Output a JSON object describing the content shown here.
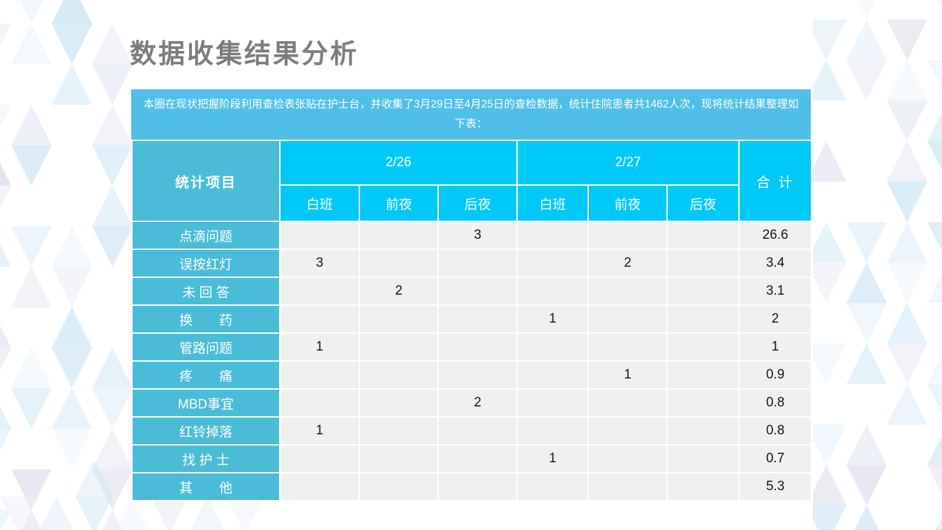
{
  "page_title": "数据收集结果分析",
  "banner": {
    "text": "本圈在现状把握阶段利用查检表张贴在护士台，并收集了3月29日至4月25日的查检数据，统计住院患者共1462人次，现将统计结果整理如下表："
  },
  "colors": {
    "banner_bg": "#50bfe8",
    "header_bg": "#00c9f7",
    "label_bg": "#4abcd8",
    "data_cell_bg": "#f0f0f0",
    "title_color": "#7c7c7c"
  },
  "table": {
    "project_col_label": "统计项目",
    "total_col_label": "合 计",
    "date_groups": [
      {
        "label": "2/26",
        "shifts": [
          "白班",
          "前夜",
          "后夜"
        ]
      },
      {
        "label": "2/27",
        "shifts": [
          "白班",
          "前夜",
          "后夜"
        ]
      }
    ],
    "rows": [
      {
        "label": "点滴问题",
        "values": [
          "",
          "",
          "3",
          "",
          "",
          ""
        ],
        "total": "26.6"
      },
      {
        "label": "误按红灯",
        "values": [
          "3",
          "",
          "",
          "",
          "2",
          ""
        ],
        "total": "3.4"
      },
      {
        "label": "未 回 答",
        "values": [
          "",
          "2",
          "",
          "",
          "",
          ""
        ],
        "total": "3.1"
      },
      {
        "label": "换　　药",
        "values": [
          "",
          "",
          "",
          "1",
          "",
          ""
        ],
        "total": "2"
      },
      {
        "label": "管路问题",
        "values": [
          "1",
          "",
          "",
          "",
          "",
          ""
        ],
        "total": "1"
      },
      {
        "label": "疼　　痛",
        "values": [
          "",
          "",
          "",
          "",
          "1",
          ""
        ],
        "total": "0.9"
      },
      {
        "label": "MBD事宜",
        "values": [
          "",
          "",
          "2",
          "",
          "",
          ""
        ],
        "total": "0.8"
      },
      {
        "label": "红铃掉落",
        "values": [
          "1",
          "",
          "",
          "",
          "",
          ""
        ],
        "total": "0.8"
      },
      {
        "label": "找 护 士",
        "values": [
          "",
          "",
          "",
          "1",
          "",
          ""
        ],
        "total": "0.7"
      },
      {
        "label": "其　　他",
        "values": [
          "",
          "",
          "",
          "",
          "",
          ""
        ],
        "total": "5.3"
      }
    ]
  }
}
